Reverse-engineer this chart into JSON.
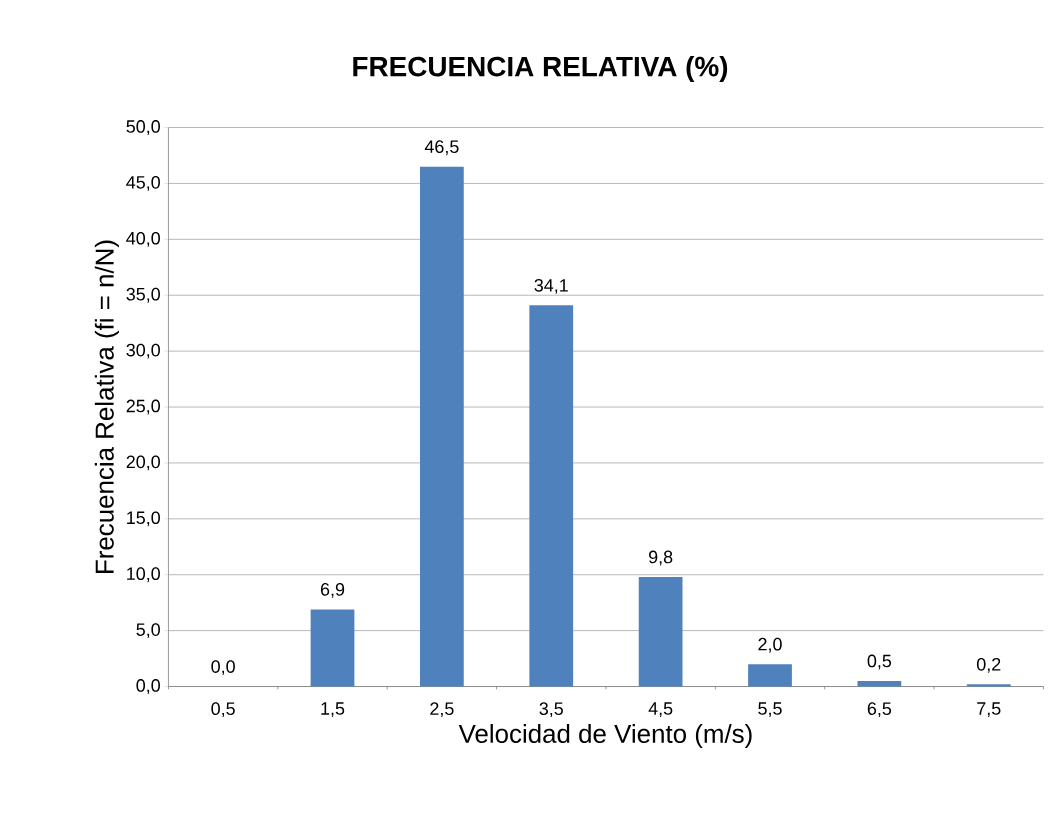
{
  "chart_data": {
    "type": "bar",
    "title": "FRECUENCIA RELATIVA (%)",
    "xlabel": "Velocidad de Viento (m/s)",
    "ylabel": "Frecuencia Relativa (fi = n/N)",
    "categories": [
      "0,5",
      "1,5",
      "2,5",
      "3,5",
      "4,5",
      "5,5",
      "6,5",
      "7,5"
    ],
    "values": [
      0.0,
      6.9,
      46.5,
      34.1,
      9.8,
      2.0,
      0.5,
      0.2
    ],
    "value_labels": [
      "0,0",
      "6,9",
      "46,5",
      "34,1",
      "9,8",
      "2,0",
      "0,5",
      "0,2"
    ],
    "color": "#4f81bd",
    "ylim": [
      0,
      50
    ],
    "yticks": [
      {
        "value": 0,
        "label": "0,0"
      },
      {
        "value": 5,
        "label": "5,0"
      },
      {
        "value": 10,
        "label": "10,0"
      },
      {
        "value": 15,
        "label": "15,0"
      },
      {
        "value": 20,
        "label": "20,0"
      },
      {
        "value": 25,
        "label": "25,0"
      },
      {
        "value": 30,
        "label": "30,0"
      },
      {
        "value": 35,
        "label": "35,0"
      },
      {
        "value": 40,
        "label": "40,0"
      },
      {
        "value": 45,
        "label": "45,0"
      },
      {
        "value": 50,
        "label": "50,0"
      }
    ],
    "grid": "y"
  }
}
